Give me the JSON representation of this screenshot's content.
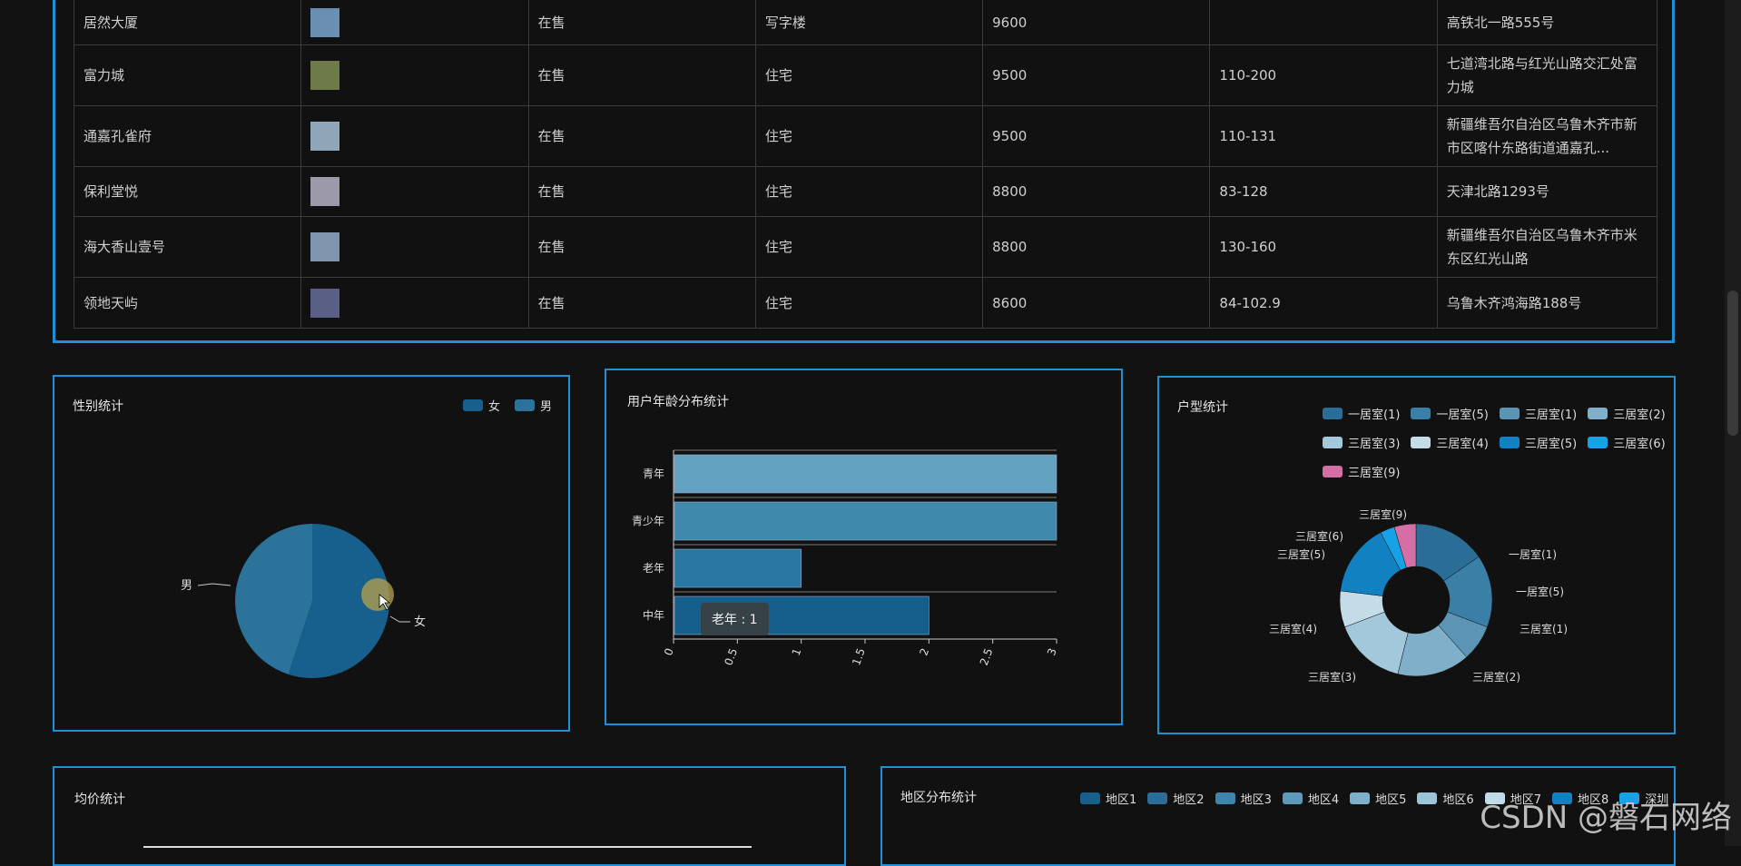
{
  "table": {
    "rows": [
      {
        "name": "居然大厦",
        "status": "在售",
        "type": "写字楼",
        "price": "9600",
        "area": "",
        "address": "高铁北一路555号",
        "thumb_color": "#6b8fb3"
      },
      {
        "name": "富力城",
        "status": "在售",
        "type": "住宅",
        "price": "9500",
        "area": "110-200",
        "address": "七道湾北路与红光山路交汇处富力城",
        "thumb_color": "#6e7a4a"
      },
      {
        "name": "通嘉孔雀府",
        "status": "在售",
        "type": "住宅",
        "price": "9500",
        "area": "110-131",
        "address": "新疆维吾尔自治区乌鲁木齐市新市区喀什东路街道通嘉孔...",
        "thumb_color": "#8fa5b8"
      },
      {
        "name": "保利堂悦",
        "status": "在售",
        "type": "住宅",
        "price": "8800",
        "area": "83-128",
        "address": "天津北路1293号",
        "thumb_color": "#9c9aa8"
      },
      {
        "name": "海大香山壹号",
        "status": "在售",
        "type": "住宅",
        "price": "8800",
        "area": "130-160",
        "address": "新疆维吾尔自治区乌鲁木齐市米东区红光山路",
        "thumb_color": "#7e95ad"
      },
      {
        "name": "领地天屿",
        "status": "在售",
        "type": "住宅",
        "price": "8600",
        "area": "84-102.9",
        "address": "乌鲁木齐鸿海路188号",
        "thumb_color": "#5a5f86"
      }
    ]
  },
  "gender": {
    "title": "性别统计",
    "legend": [
      {
        "label": "女",
        "color": "#17608d"
      },
      {
        "label": "男",
        "color": "#2b739a"
      }
    ],
    "labels": {
      "male": "男",
      "female": "女"
    }
  },
  "age": {
    "title": "用户年龄分布统计",
    "tooltip": "老年 : 1"
  },
  "rooms": {
    "title": "户型统计",
    "legend": [
      {
        "label": "一居室(1)",
        "color": "#2a6d96"
      },
      {
        "label": "一居室(5)",
        "color": "#3a7fa6"
      },
      {
        "label": "三居室(1)",
        "color": "#5b94b5"
      },
      {
        "label": "三居室(2)",
        "color": "#80afc9"
      },
      {
        "label": "三居室(3)",
        "color": "#a3c7db"
      },
      {
        "label": "三居室(4)",
        "color": "#c4dbe8"
      },
      {
        "label": "三居室(5)",
        "color": "#1181c2"
      },
      {
        "label": "三居室(6)",
        "color": "#17a2e6"
      },
      {
        "label": "三居室(9)",
        "color": "#d46ea5"
      }
    ],
    "labels": [
      "三居室(9)",
      "三居室(6)",
      "三居室(5)",
      "一居室(1)",
      "一居室(5)",
      "三居室(1)",
      "三居室(4)",
      "三居室(3)",
      "三居室(2)"
    ]
  },
  "avg": {
    "title": "均价统计"
  },
  "region": {
    "title": "地区分布统计",
    "legend": [
      {
        "label": "地区1",
        "color": "#17608d"
      },
      {
        "label": "地区2",
        "color": "#2a6d96"
      },
      {
        "label": "地区3",
        "color": "#3f84ab"
      },
      {
        "label": "地区4",
        "color": "#5e98ba"
      },
      {
        "label": "地区5",
        "color": "#7fb0cb"
      },
      {
        "label": "地区6",
        "color": "#9dc3d9"
      },
      {
        "label": "地区7",
        "color": "#c3dbe9"
      },
      {
        "label": "地区8",
        "color": "#1181c2"
      },
      {
        "label": "深圳",
        "color": "#17a2e6"
      }
    ]
  },
  "watermark": "CSDN @磐石网络",
  "chart_data": [
    {
      "type": "pie",
      "title": "性别统计",
      "labels": [
        "男",
        "女"
      ],
      "values": [
        0.45,
        0.55
      ]
    },
    {
      "type": "bar",
      "title": "用户年龄分布统计",
      "categories": [
        "青年",
        "青少年",
        "老年",
        "中年"
      ],
      "values": [
        3,
        3,
        1,
        2
      ],
      "xlim": [
        0,
        3
      ],
      "ticks": [
        "0",
        "0.5",
        "1",
        "1.5",
        "2",
        "2.5",
        "3"
      ]
    },
    {
      "type": "pie",
      "title": "户型统计",
      "labels": [
        "一居室(1)",
        "一居室(5)",
        "三居室(1)",
        "三居室(2)",
        "三居室(3)",
        "三居室(4)",
        "三居室(5)",
        "三居室(6)",
        "三居室(9)"
      ],
      "values": [
        2,
        2,
        1,
        2,
        2,
        1,
        2,
        0.4,
        0.6
      ]
    }
  ]
}
